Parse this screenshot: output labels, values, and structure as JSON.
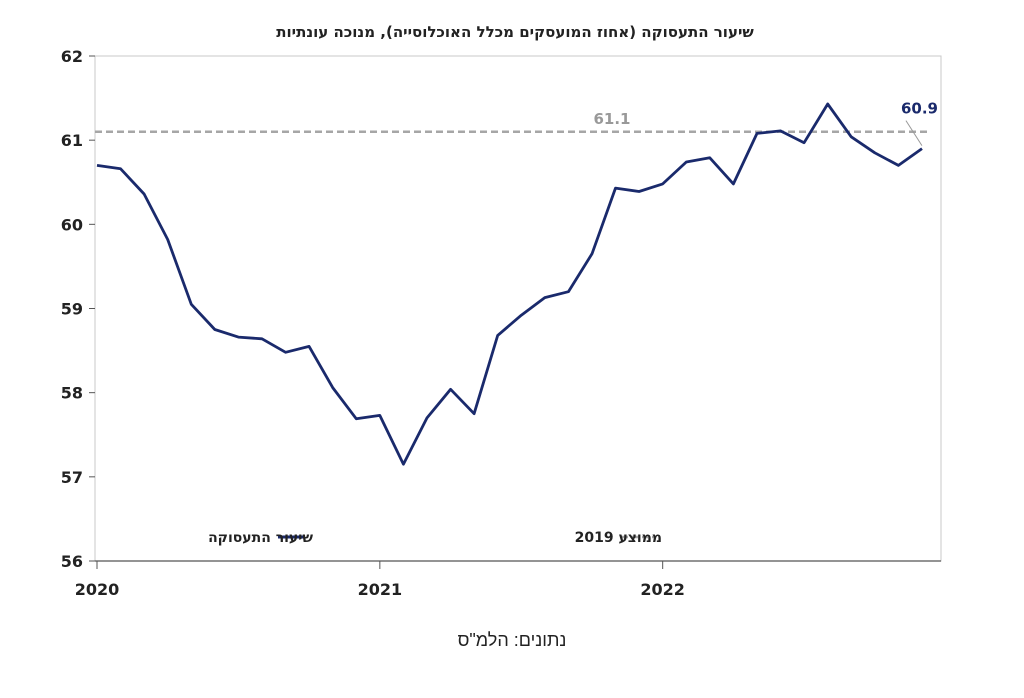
{
  "chart_data": {
    "type": "line",
    "title": "שיעור התעסוקה (אחוז המועסקים מכלל האוכלוסייה), מנוכה עונתיות",
    "x_tick_labels": [
      "2020",
      "2021",
      "2022"
    ],
    "ylim": [
      56,
      62
    ],
    "y_ticks": [
      56,
      57,
      58,
      59,
      60,
      61,
      62
    ],
    "grid": false,
    "legend_position": "bottom-inside",
    "series": [
      {
        "name": "שיעור התעסוקה",
        "color": "#1a2a6c",
        "style": "solid",
        "x": [
          "2020-01",
          "2020-02",
          "2020-03",
          "2020-04",
          "2020-05",
          "2020-06",
          "2020-07",
          "2020-08",
          "2020-09",
          "2020-10",
          "2020-11",
          "2020-12",
          "2021-01",
          "2021-02",
          "2021-03",
          "2021-04",
          "2021-05",
          "2021-06",
          "2021-07",
          "2021-08",
          "2021-09",
          "2021-10",
          "2021-11",
          "2021-12",
          "2022-01",
          "2022-02",
          "2022-03",
          "2022-04",
          "2022-05",
          "2022-06",
          "2022-07",
          "2022-08",
          "2022-09",
          "2022-10",
          "2022-11",
          "2022-12"
        ],
        "values": [
          60.7,
          60.66,
          60.36,
          59.82,
          59.05,
          58.75,
          58.66,
          58.64,
          58.48,
          58.55,
          58.06,
          57.69,
          57.73,
          57.15,
          57.7,
          58.04,
          57.75,
          58.68,
          58.92,
          59.13,
          59.2,
          59.65,
          60.43,
          60.39,
          60.48,
          60.74,
          60.79,
          60.48,
          61.08,
          61.11,
          60.97,
          61.43,
          61.04,
          60.85,
          60.7,
          60.9
        ],
        "end_label": "60.9"
      },
      {
        "name": "ממוצע 2019",
        "color": "#a6a6a6",
        "style": "dashed",
        "value": 61.1,
        "label": "61.1"
      }
    ]
  },
  "source": "נתונים: הלמ\"ס"
}
